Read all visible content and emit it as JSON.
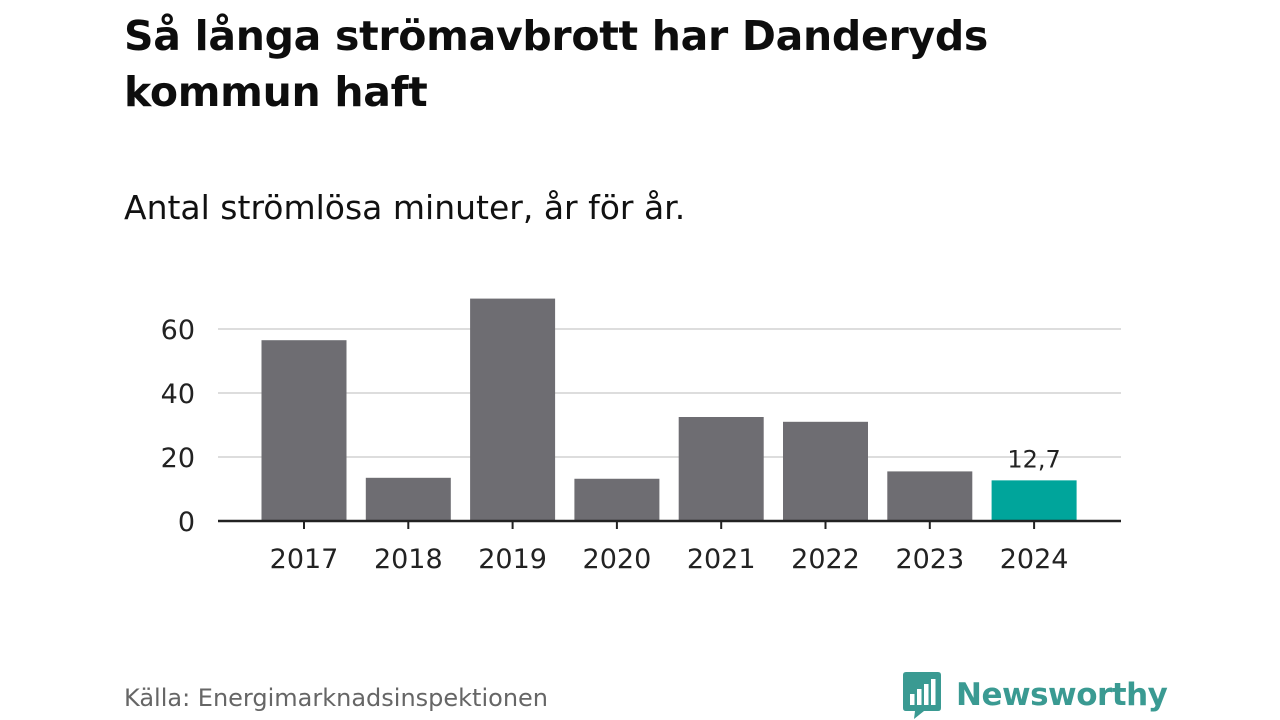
{
  "title": "Så långa strömavbrott har Danderyds kommun haft",
  "subtitle": "Antal strömlösa minuter, år för år.",
  "source": "Källa: Energimarknadsinspektionen",
  "brand": {
    "name": "Newsworthy",
    "icon": "newsworthy-logo-icon",
    "color": "#3a9a92"
  },
  "colors": {
    "bar": "#6e6d72",
    "highlight": "#00a59b",
    "grid": "#dddddd",
    "axis": "#222222"
  },
  "chart_data": {
    "type": "bar",
    "title": "Så långa strömavbrott har Danderyds kommun haft",
    "subtitle": "Antal strömlösa minuter, år för år.",
    "xlabel": "",
    "ylabel": "",
    "categories": [
      "2017",
      "2018",
      "2019",
      "2020",
      "2021",
      "2022",
      "2023",
      "2024"
    ],
    "values": [
      56.5,
      13.5,
      69.5,
      13.2,
      32.5,
      31,
      15.5,
      12.7
    ],
    "highlight_index": 7,
    "data_labels": [
      {
        "index": 7,
        "text": "12,7"
      }
    ],
    "yticks": [
      0,
      20,
      40,
      60
    ],
    "ylim": [
      0,
      70
    ],
    "grid": true,
    "legend": "none"
  }
}
